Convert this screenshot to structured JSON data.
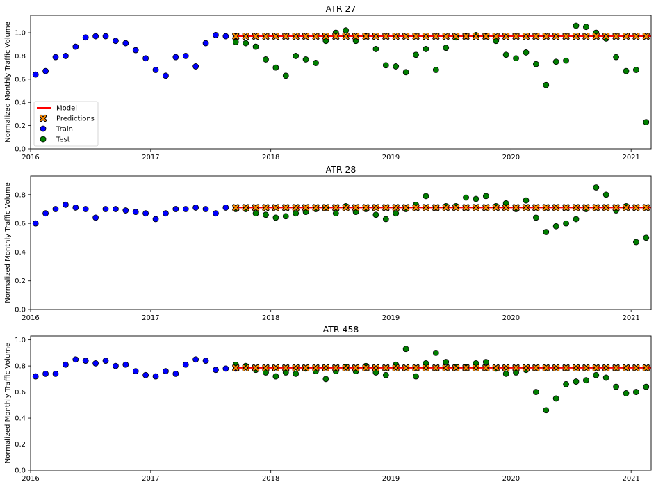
{
  "chart_data": [
    {
      "type": "scatter",
      "title": "ATR 27",
      "xlabel": "",
      "ylabel": "Normalized Monthly Traffic Volume",
      "xlim": [
        "2016-01-01",
        "2021-03-01"
      ],
      "ylim": [
        0,
        1.15
      ],
      "yticks": [
        "0.0",
        "0.2",
        "0.4",
        "0.6",
        "0.8",
        "1.0"
      ],
      "xticks": [
        "2016",
        "2017",
        "2018",
        "2019",
        "2020",
        "2021"
      ],
      "grid": false,
      "legend": {
        "placement": "lower-left",
        "entries": [
          "Model",
          "Predictions",
          "Train",
          "Test"
        ]
      },
      "series": [
        {
          "name": "Train",
          "color": "#0000ff",
          "marker": "circle",
          "x": [
            "2016-01",
            "2016-02",
            "2016-03",
            "2016-04",
            "2016-05",
            "2016-06",
            "2016-07",
            "2016-08",
            "2016-09",
            "2016-10",
            "2016-11",
            "2016-12",
            "2017-01",
            "2017-02",
            "2017-03",
            "2017-04",
            "2017-05",
            "2017-06",
            "2017-07",
            "2017-08",
            "2017-09"
          ],
          "y": [
            0.64,
            0.67,
            0.79,
            0.8,
            0.88,
            0.96,
            0.97,
            0.97,
            0.93,
            0.91,
            0.85,
            0.78,
            0.68,
            0.63,
            0.79,
            0.8,
            0.71,
            0.91,
            0.98,
            0.97,
            0.97
          ]
        },
        {
          "name": "Test",
          "color": "#008000",
          "marker": "circle",
          "x": [
            "2017-09",
            "2017-10",
            "2017-11",
            "2017-12",
            "2018-01",
            "2018-02",
            "2018-03",
            "2018-04",
            "2018-05",
            "2018-06",
            "2018-07",
            "2018-08",
            "2018-09",
            "2018-10",
            "2018-11",
            "2018-12",
            "2019-01",
            "2019-02",
            "2019-03",
            "2019-04",
            "2019-05",
            "2019-06",
            "2019-07",
            "2019-08",
            "2019-09",
            "2019-10",
            "2019-11",
            "2019-12",
            "2020-01",
            "2020-02",
            "2020-03",
            "2020-04",
            "2020-05",
            "2020-06",
            "2020-07",
            "2020-08",
            "2020-09",
            "2020-10",
            "2020-11",
            "2020-12",
            "2021-01",
            "2021-02"
          ],
          "y": [
            0.92,
            0.91,
            0.88,
            0.77,
            0.7,
            0.63,
            0.8,
            0.77,
            0.74,
            0.93,
            1.0,
            1.02,
            0.93,
            0.97,
            0.86,
            0.72,
            0.71,
            0.66,
            0.81,
            0.86,
            0.68,
            0.87,
            0.96,
            0.97,
            0.98,
            0.97,
            0.93,
            0.81,
            0.78,
            0.83,
            0.73,
            0.55,
            0.75,
            0.76,
            1.06,
            1.05,
            1.0,
            0.95,
            0.79,
            0.67,
            0.68,
            0.23
          ]
        },
        {
          "name": "Model",
          "color": "#ff0000",
          "marker": "line",
          "type": "line",
          "x": [
            "2017-09",
            "2021-03"
          ],
          "y": [
            0.97,
            0.97
          ]
        },
        {
          "name": "Predictions",
          "color": "#ff8c00",
          "marker": "x",
          "x_start": "2017-09",
          "x_end": "2021-02",
          "y": 0.97
        }
      ]
    },
    {
      "type": "scatter",
      "title": "ATR 28",
      "xlabel": "",
      "ylabel": "Normalized Monthly Traffic Volume",
      "xlim": [
        "2016-01-01",
        "2021-03-01"
      ],
      "ylim": [
        0,
        0.93
      ],
      "yticks": [
        "0.0",
        "0.2",
        "0.4",
        "0.6",
        "0.8"
      ],
      "xticks": [
        "2016",
        "2017",
        "2018",
        "2019",
        "2020",
        "2021"
      ],
      "grid": false,
      "series": [
        {
          "name": "Train",
          "color": "#0000ff",
          "marker": "circle",
          "x": [
            "2016-01",
            "2016-02",
            "2016-03",
            "2016-04",
            "2016-05",
            "2016-06",
            "2016-07",
            "2016-08",
            "2016-09",
            "2016-10",
            "2016-11",
            "2016-12",
            "2017-01",
            "2017-02",
            "2017-03",
            "2017-04",
            "2017-05",
            "2017-06",
            "2017-07",
            "2017-08",
            "2017-09"
          ],
          "y": [
            0.6,
            0.67,
            0.7,
            0.73,
            0.71,
            0.7,
            0.64,
            0.7,
            0.7,
            0.69,
            0.68,
            0.67,
            0.63,
            0.67,
            0.7,
            0.7,
            0.71,
            0.7,
            0.67,
            0.71,
            0.71
          ]
        },
        {
          "name": "Test",
          "color": "#008000",
          "marker": "circle",
          "x": [
            "2017-09",
            "2017-10",
            "2017-11",
            "2017-12",
            "2018-01",
            "2018-02",
            "2018-03",
            "2018-04",
            "2018-05",
            "2018-06",
            "2018-07",
            "2018-08",
            "2018-09",
            "2018-10",
            "2018-11",
            "2018-12",
            "2019-01",
            "2019-02",
            "2019-03",
            "2019-04",
            "2019-05",
            "2019-06",
            "2019-07",
            "2019-08",
            "2019-09",
            "2019-10",
            "2019-11",
            "2019-12",
            "2020-01",
            "2020-02",
            "2020-03",
            "2020-04",
            "2020-05",
            "2020-06",
            "2020-07",
            "2020-08",
            "2020-09",
            "2020-10",
            "2020-11",
            "2020-12",
            "2021-01",
            "2021-02"
          ],
          "y": [
            0.7,
            0.7,
            0.67,
            0.66,
            0.64,
            0.65,
            0.67,
            0.68,
            0.7,
            0.71,
            0.67,
            0.72,
            0.68,
            0.7,
            0.66,
            0.63,
            0.67,
            0.7,
            0.73,
            0.79,
            0.71,
            0.72,
            0.72,
            0.78,
            0.77,
            0.79,
            0.72,
            0.74,
            0.7,
            0.76,
            0.64,
            0.54,
            0.58,
            0.6,
            0.63,
            0.7,
            0.85,
            0.8,
            0.69,
            0.72,
            0.47,
            0.5
          ]
        },
        {
          "name": "Model",
          "color": "#ff0000",
          "marker": "line",
          "type": "line",
          "x": [
            "2017-09",
            "2021-03"
          ],
          "y": [
            0.71,
            0.71
          ]
        },
        {
          "name": "Predictions",
          "color": "#ff8c00",
          "marker": "x",
          "x_start": "2017-09",
          "x_end": "2021-02",
          "y": 0.71
        }
      ]
    },
    {
      "type": "scatter",
      "title": "ATR 458",
      "xlabel": "",
      "ylabel": "Normalized Monthly Traffic Volume",
      "xlim": [
        "2016-01-01",
        "2021-03-01"
      ],
      "ylim": [
        0,
        1.03
      ],
      "yticks": [
        "0.0",
        "0.2",
        "0.4",
        "0.6",
        "0.8",
        "1.0"
      ],
      "xticks": [
        "2016",
        "2017",
        "2018",
        "2019",
        "2020",
        "2021"
      ],
      "grid": false,
      "series": [
        {
          "name": "Train",
          "color": "#0000ff",
          "marker": "circle",
          "x": [
            "2016-01",
            "2016-02",
            "2016-03",
            "2016-04",
            "2016-05",
            "2016-06",
            "2016-07",
            "2016-08",
            "2016-09",
            "2016-10",
            "2016-11",
            "2016-12",
            "2017-01",
            "2017-02",
            "2017-03",
            "2017-04",
            "2017-05",
            "2017-06",
            "2017-07",
            "2017-08",
            "2017-09"
          ],
          "y": [
            0.72,
            0.74,
            0.74,
            0.81,
            0.85,
            0.84,
            0.82,
            0.84,
            0.8,
            0.81,
            0.76,
            0.73,
            0.72,
            0.76,
            0.74,
            0.81,
            0.85,
            0.84,
            0.77,
            0.78,
            0.78
          ]
        },
        {
          "name": "Test",
          "color": "#008000",
          "marker": "circle",
          "x": [
            "2017-09",
            "2017-10",
            "2017-11",
            "2017-12",
            "2018-01",
            "2018-02",
            "2018-03",
            "2018-04",
            "2018-05",
            "2018-06",
            "2018-07",
            "2018-08",
            "2018-09",
            "2018-10",
            "2018-11",
            "2018-12",
            "2019-01",
            "2019-02",
            "2019-03",
            "2019-04",
            "2019-05",
            "2019-06",
            "2019-07",
            "2019-08",
            "2019-09",
            "2019-10",
            "2019-11",
            "2019-12",
            "2020-01",
            "2020-02",
            "2020-03",
            "2020-04",
            "2020-05",
            "2020-06",
            "2020-07",
            "2020-08",
            "2020-09",
            "2020-10",
            "2020-11",
            "2020-12",
            "2021-01",
            "2021-02"
          ],
          "y": [
            0.81,
            0.8,
            0.77,
            0.75,
            0.72,
            0.75,
            0.74,
            0.78,
            0.76,
            0.7,
            0.76,
            0.79,
            0.76,
            0.8,
            0.75,
            0.73,
            0.81,
            0.93,
            0.72,
            0.82,
            0.9,
            0.83,
            0.79,
            0.79,
            0.82,
            0.83,
            0.78,
            0.74,
            0.75,
            0.77,
            0.6,
            0.46,
            0.55,
            0.66,
            0.68,
            0.69,
            0.73,
            0.71,
            0.64,
            0.59,
            0.6,
            0.64
          ]
        },
        {
          "name": "Model",
          "color": "#ff0000",
          "marker": "line",
          "type": "line",
          "x": [
            "2017-09",
            "2021-03"
          ],
          "y": [
            0.785,
            0.785
          ]
        },
        {
          "name": "Predictions",
          "color": "#ff8c00",
          "marker": "x",
          "x_start": "2017-09",
          "x_end": "2021-02",
          "y": 0.785
        }
      ]
    }
  ]
}
